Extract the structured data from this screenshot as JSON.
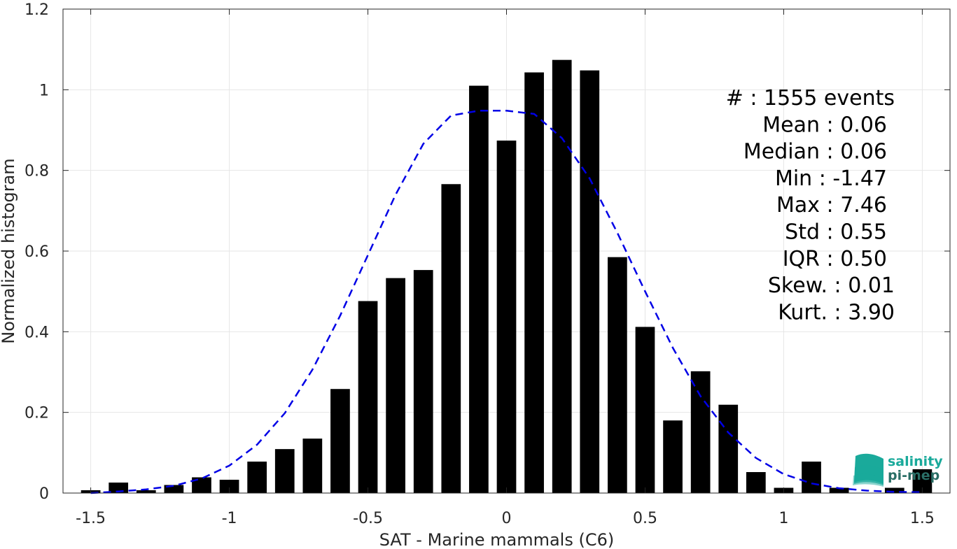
{
  "chart_data": {
    "type": "bar",
    "xlabel": "SAT - Marine mammals (C6)",
    "ylabel": "Normalized histogram",
    "xlim": [
      -1.6,
      1.6
    ],
    "ylim": [
      0,
      1.2
    ],
    "xticks": [
      -1.5,
      -1,
      -0.5,
      0,
      0.5,
      1,
      1.5
    ],
    "xtick_labels": [
      "-1.5",
      "-1",
      "-0.5",
      "0",
      "0.5",
      "1",
      "1.5"
    ],
    "yticks": [
      0,
      0.2,
      0.4,
      0.6,
      0.8,
      1,
      1.2
    ],
    "ytick_labels": [
      "0",
      "0.2",
      "0.4",
      "0.6",
      "0.8",
      "1",
      "1.2"
    ],
    "grid": true,
    "bar_width": 0.07,
    "bar_color": "#000000",
    "bars": {
      "x": [
        -1.5,
        -1.4,
        -1.3,
        -1.2,
        -1.1,
        -1.0,
        -0.9,
        -0.8,
        -0.7,
        -0.6,
        -0.5,
        -0.4,
        -0.3,
        -0.2,
        -0.1,
        0.0,
        0.1,
        0.2,
        0.3,
        0.4,
        0.5,
        0.6,
        0.7,
        0.8,
        0.9,
        1.0,
        1.1,
        1.2,
        1.3,
        1.4,
        1.5
      ],
      "values": [
        0.007,
        0.026,
        0.007,
        0.02,
        0.039,
        0.033,
        0.078,
        0.109,
        0.135,
        0.258,
        0.476,
        0.533,
        0.553,
        0.766,
        1.01,
        0.874,
        1.043,
        1.074,
        1.048,
        0.585,
        0.412,
        0.18,
        0.302,
        0.219,
        0.052,
        0.013,
        0.078,
        0.013,
        0.0,
        0.013,
        0.059
      ]
    },
    "fit_curve": {
      "style": "dashed",
      "color": "#0000e6",
      "x": [
        -1.5,
        -1.4,
        -1.3,
        -1.2,
        -1.1,
        -1.0,
        -0.9,
        -0.8,
        -0.7,
        -0.6,
        -0.5,
        -0.4,
        -0.3,
        -0.2,
        -0.1,
        0.0,
        0.1,
        0.2,
        0.3,
        0.4,
        0.5,
        0.6,
        0.7,
        0.8,
        0.9,
        1.0,
        1.1,
        1.2,
        1.3,
        1.4,
        1.5
      ],
      "y": [
        0.0,
        0.004,
        0.009,
        0.018,
        0.036,
        0.068,
        0.12,
        0.198,
        0.306,
        0.44,
        0.59,
        0.74,
        0.866,
        0.936,
        0.948,
        0.948,
        0.94,
        0.88,
        0.78,
        0.645,
        0.5,
        0.36,
        0.24,
        0.15,
        0.087,
        0.047,
        0.024,
        0.012,
        0.006,
        0.003,
        0.002
      ]
    },
    "stats": [
      "#  : 1555 events",
      "Mean : 0.06",
      "Median : 0.06",
      "Min : -1.47",
      "Max : 7.46",
      "Std : 0.55",
      "IQR : 0.50",
      "Skew. : 0.01",
      "Kurt. : 3.90"
    ]
  },
  "logo": {
    "line1": "salinity",
    "line2": "pi-mep",
    "color_top": "#1aaa9b",
    "color_bottom": "#2a6e66"
  }
}
